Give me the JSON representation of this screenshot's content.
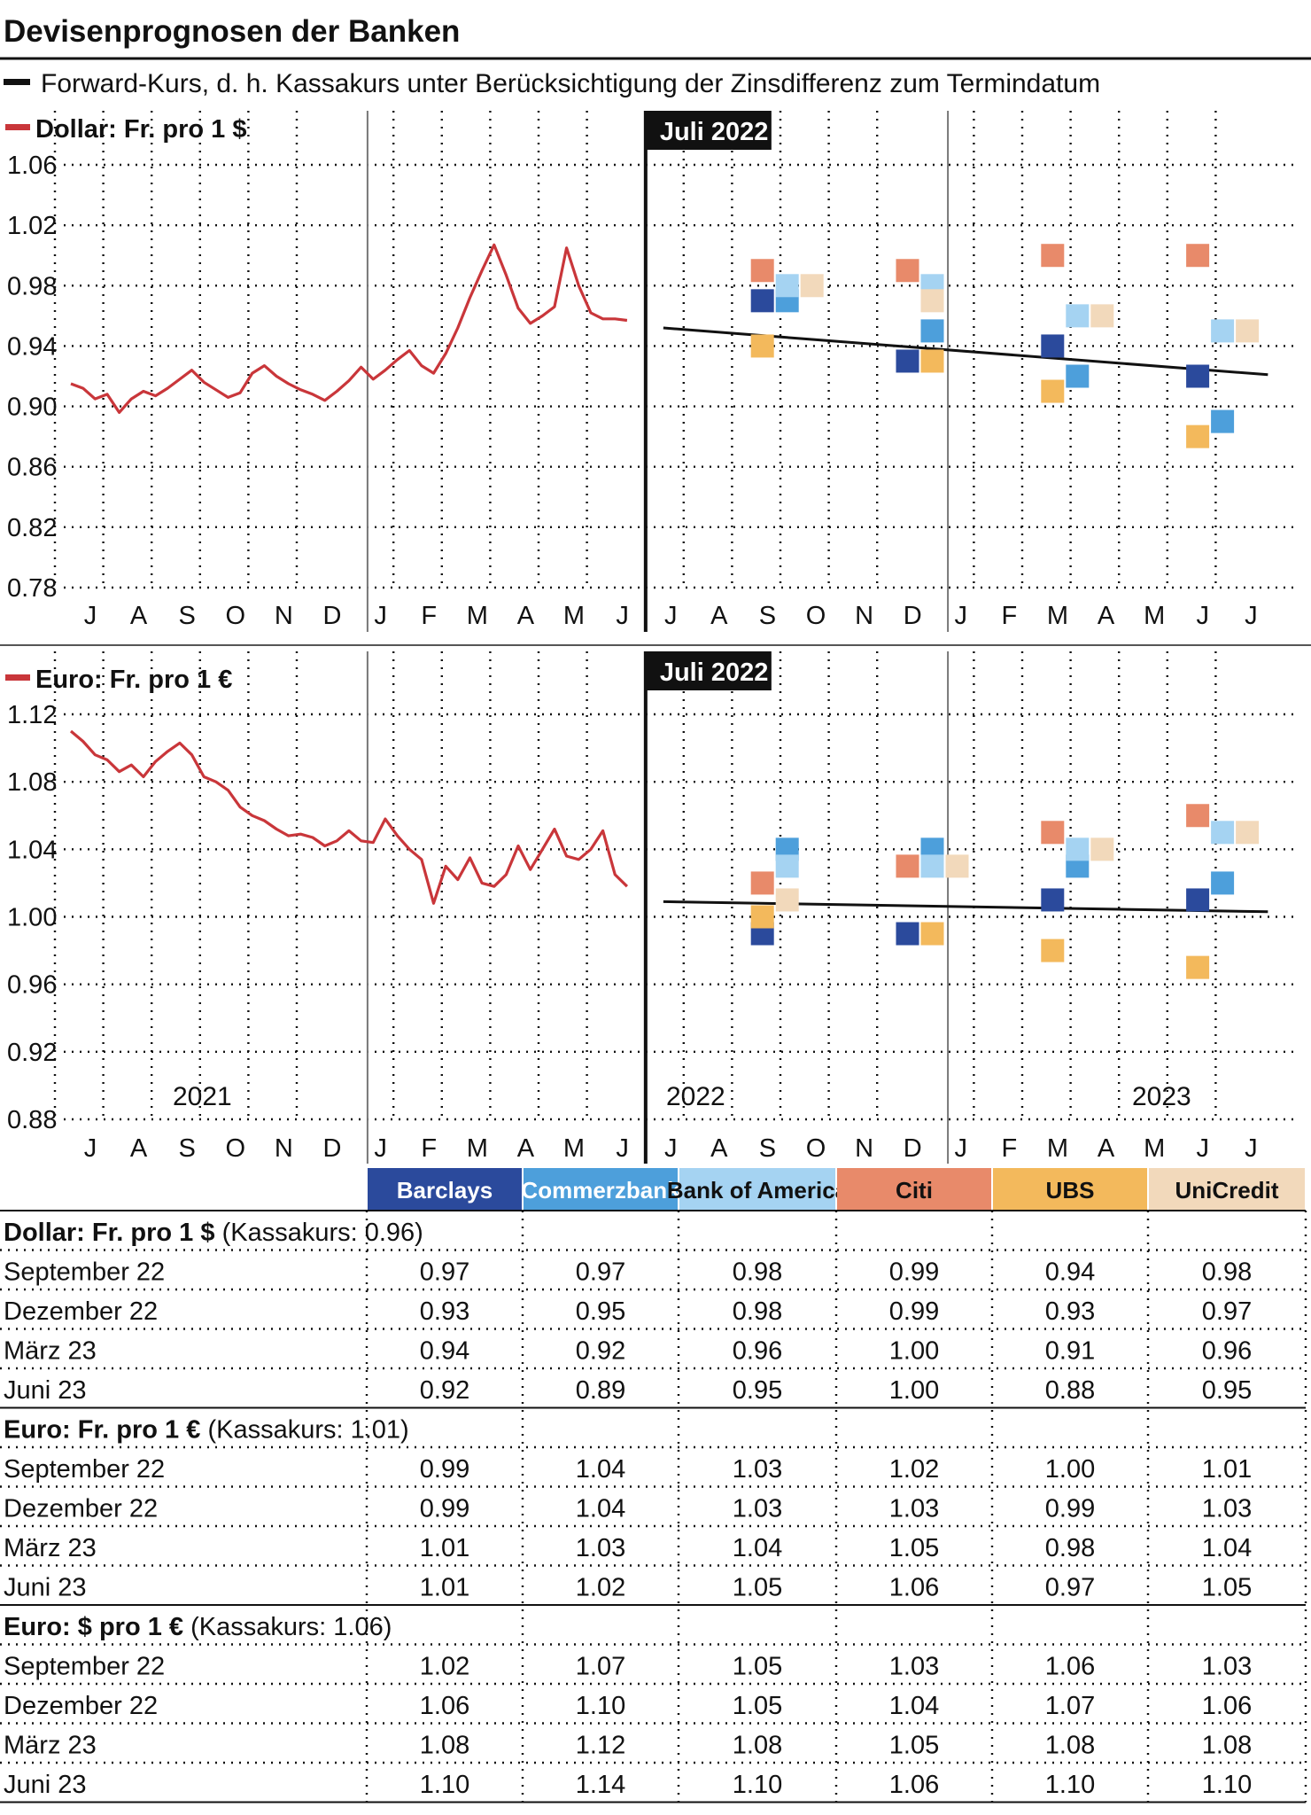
{
  "chart_data": {
    "type": "line",
    "title": "Devisenprognosen der Banken",
    "legend_forward": "Forward-Kurs, d. h. Kassakurs unter Berücksichtigung der Zinsdifferenz zum Termindatum",
    "banks": [
      {
        "name": "Barclays",
        "color": "#2b4a9c"
      },
      {
        "name": "Commerzbank",
        "color": "#4d9fdb"
      },
      {
        "name": "Bank of America",
        "color": "#a5d3f2"
      },
      {
        "name": "Citi",
        "color": "#e88a6a"
      },
      {
        "name": "UBS",
        "color": "#f3b95c"
      },
      {
        "name": "UniCredit",
        "color": "#f2d9bb"
      }
    ],
    "month_labels": [
      "J",
      "A",
      "S",
      "O",
      "N",
      "D",
      "J",
      "F",
      "M",
      "A",
      "M",
      "J",
      "J",
      "A",
      "S",
      "O",
      "N",
      "D",
      "J",
      "F",
      "M",
      "A",
      "M",
      "J",
      "J"
    ],
    "year_labels": [
      "2021",
      "2022",
      "2023"
    ],
    "charts": [
      {
        "id": "usd",
        "label": "Dollar: Fr. pro 1 $",
        "marker_label": "Juli 2022",
        "ylim": [
          0.78,
          1.06
        ],
        "y_ticks": [
          "1.06",
          "1.02",
          "0.98",
          "0.94",
          "0.90",
          "0.86",
          "0.82",
          "0.78"
        ],
        "history_x": [
          0,
          0.25,
          0.5,
          0.75,
          1,
          1.25,
          1.5,
          1.75,
          2,
          2.25,
          2.5,
          2.75,
          3,
          3.25,
          3.5,
          3.75,
          4,
          4.25,
          4.5,
          4.75,
          5,
          5.25,
          5.5,
          5.75,
          6,
          6.25,
          6.5,
          6.75,
          7,
          7.25,
          7.5,
          7.75,
          8,
          8.25,
          8.5,
          8.75,
          9,
          9.25,
          9.5,
          9.75,
          10,
          10.25,
          10.5,
          10.75,
          11,
          11.25,
          11.5
        ],
        "history_y": [
          0.915,
          0.912,
          0.905,
          0.908,
          0.896,
          0.905,
          0.91,
          0.907,
          0.912,
          0.918,
          0.924,
          0.916,
          0.911,
          0.906,
          0.909,
          0.922,
          0.927,
          0.92,
          0.915,
          0.911,
          0.908,
          0.904,
          0.91,
          0.917,
          0.926,
          0.918,
          0.924,
          0.931,
          0.937,
          0.927,
          0.922,
          0.935,
          0.952,
          0.972,
          0.99,
          1.007,
          0.987,
          0.965,
          0.955,
          0.96,
          0.966,
          1.005,
          0.98,
          0.962,
          0.958,
          0.958,
          0.957
        ],
        "forward_x": [
          12.25,
          24.75
        ],
        "forward_y": [
          0.952,
          0.921
        ],
        "forecasts": [
          {
            "period": "September 22",
            "x": 14.5,
            "values": [
              0.97,
              0.97,
              0.98,
              0.99,
              0.94,
              0.98
            ]
          },
          {
            "period": "Dezember 22",
            "x": 17.5,
            "values": [
              0.93,
              0.95,
              0.98,
              0.99,
              0.93,
              0.97
            ]
          },
          {
            "period": "März 23",
            "x": 20.5,
            "values": [
              0.94,
              0.92,
              0.96,
              1.0,
              0.91,
              0.96
            ]
          },
          {
            "period": "Juni 23",
            "x": 23.5,
            "values": [
              0.92,
              0.89,
              0.95,
              1.0,
              0.88,
              0.95
            ]
          }
        ]
      },
      {
        "id": "eur",
        "label": "Euro: Fr. pro 1 €",
        "marker_label": "Juli 2022",
        "ylim": [
          0.88,
          1.12
        ],
        "y_ticks": [
          "1.12",
          "1.08",
          "1.04",
          "1.00",
          "0.96",
          "0.92",
          "0.88"
        ],
        "history_x": [
          0,
          0.25,
          0.5,
          0.75,
          1,
          1.25,
          1.5,
          1.75,
          2,
          2.25,
          2.5,
          2.75,
          3,
          3.25,
          3.5,
          3.75,
          4,
          4.25,
          4.5,
          4.75,
          5,
          5.25,
          5.5,
          5.75,
          6,
          6.25,
          6.5,
          6.75,
          7,
          7.25,
          7.5,
          7.75,
          8,
          8.25,
          8.5,
          8.75,
          9,
          9.25,
          9.5,
          9.75,
          10,
          10.25,
          10.5,
          10.75,
          11,
          11.25,
          11.5
        ],
        "history_y": [
          1.11,
          1.104,
          1.096,
          1.093,
          1.086,
          1.09,
          1.083,
          1.092,
          1.098,
          1.103,
          1.096,
          1.083,
          1.08,
          1.075,
          1.065,
          1.06,
          1.057,
          1.052,
          1.048,
          1.049,
          1.047,
          1.042,
          1.045,
          1.051,
          1.045,
          1.044,
          1.058,
          1.048,
          1.04,
          1.034,
          1.008,
          1.03,
          1.022,
          1.035,
          1.02,
          1.018,
          1.025,
          1.042,
          1.028,
          1.04,
          1.052,
          1.036,
          1.034,
          1.04,
          1.051,
          1.025,
          1.018
        ],
        "forward_x": [
          12.25,
          24.75
        ],
        "forward_y": [
          1.009,
          1.003
        ],
        "forecasts": [
          {
            "period": "September 22",
            "x": 14.5,
            "values": [
              0.99,
              1.04,
              1.03,
              1.02,
              1.0,
              1.01
            ]
          },
          {
            "period": "Dezember 22",
            "x": 17.5,
            "values": [
              0.99,
              1.04,
              1.03,
              1.03,
              0.99,
              1.03
            ]
          },
          {
            "period": "März 23",
            "x": 20.5,
            "values": [
              1.01,
              1.03,
              1.04,
              1.05,
              0.98,
              1.04
            ]
          },
          {
            "period": "Juni 23",
            "x": 23.5,
            "values": [
              1.01,
              1.02,
              1.05,
              1.06,
              0.97,
              1.05
            ]
          }
        ]
      }
    ],
    "table": {
      "sections": [
        {
          "title": "Dollar: Fr. pro 1 $",
          "note": "(Kassakurs: 0.96)",
          "rows": [
            {
              "label": "September 22",
              "values": [
                "0.97",
                "0.97",
                "0.98",
                "0.99",
                "0.94",
                "0.98"
              ]
            },
            {
              "label": "Dezember 22",
              "values": [
                "0.93",
                "0.95",
                "0.98",
                "0.99",
                "0.93",
                "0.97"
              ]
            },
            {
              "label": "März 23",
              "values": [
                "0.94",
                "0.92",
                "0.96",
                "1.00",
                "0.91",
                "0.96"
              ]
            },
            {
              "label": "Juni 23",
              "values": [
                "0.92",
                "0.89",
                "0.95",
                "1.00",
                "0.88",
                "0.95"
              ]
            }
          ]
        },
        {
          "title": "Euro: Fr. pro 1 €",
          "note": "(Kassakurs: 1.01)",
          "rows": [
            {
              "label": "September 22",
              "values": [
                "0.99",
                "1.04",
                "1.03",
                "1.02",
                "1.00",
                "1.01"
              ]
            },
            {
              "label": "Dezember 22",
              "values": [
                "0.99",
                "1.04",
                "1.03",
                "1.03",
                "0.99",
                "1.03"
              ]
            },
            {
              "label": "März 23",
              "values": [
                "1.01",
                "1.03",
                "1.04",
                "1.05",
                "0.98",
                "1.04"
              ]
            },
            {
              "label": "Juni 23",
              "values": [
                "1.01",
                "1.02",
                "1.05",
                "1.06",
                "0.97",
                "1.05"
              ]
            }
          ]
        },
        {
          "title": "Euro: $ pro 1 €",
          "note": "(Kassakurs: 1.06)",
          "rows": [
            {
              "label": "September 22",
              "values": [
                "1.02",
                "1.07",
                "1.05",
                "1.03",
                "1.06",
                "1.03"
              ]
            },
            {
              "label": "Dezember 22",
              "values": [
                "1.06",
                "1.10",
                "1.05",
                "1.04",
                "1.07",
                "1.06"
              ]
            },
            {
              "label": "März 23",
              "values": [
                "1.08",
                "1.12",
                "1.08",
                "1.05",
                "1.08",
                "1.08"
              ]
            },
            {
              "label": "Juni 23",
              "values": [
                "1.10",
                "1.14",
                "1.10",
                "1.06",
                "1.10",
                "1.10"
              ]
            }
          ]
        }
      ]
    }
  }
}
